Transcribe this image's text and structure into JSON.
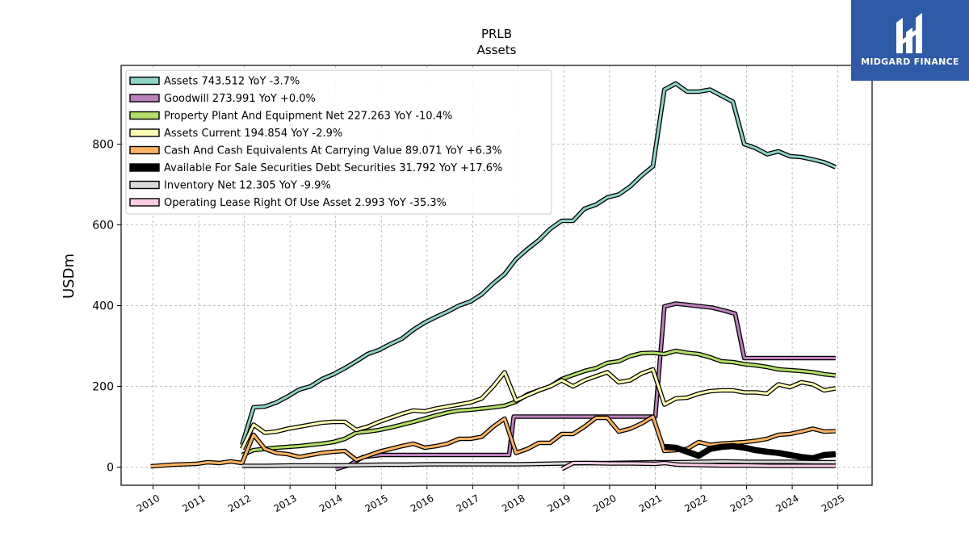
{
  "brand": {
    "name": "MIDGARD FINANCE",
    "color": "#2f5aa8",
    "icon": "midgard-logo-icon"
  },
  "chart_data": {
    "type": "line",
    "title": "PRLB",
    "subtitle": "Assets",
    "xlabel": "",
    "ylabel": "USDm",
    "xlim": [
      2009.3,
      2025.75
    ],
    "ylim": [
      -45,
      995
    ],
    "yticks": [
      0,
      200,
      400,
      600,
      800
    ],
    "xticks": [
      "2010",
      "2011",
      "2012",
      "2013",
      "2014",
      "2015",
      "2016",
      "2017",
      "2018",
      "2019",
      "2020",
      "2021",
      "2022",
      "2023",
      "2024",
      "2025"
    ],
    "grid": true,
    "legend_position": "top-left",
    "series": [
      {
        "name": "Assets",
        "legend": "Assets  743.512 YoY -3.7%",
        "color": "#8dd3c7",
        "width": 3,
        "x": [
          2011.95,
          2012.2,
          2012.45,
          2012.7,
          2012.95,
          2013.2,
          2013.45,
          2013.7,
          2013.95,
          2014.2,
          2014.45,
          2014.7,
          2014.95,
          2015.2,
          2015.45,
          2015.7,
          2015.95,
          2016.2,
          2016.45,
          2016.7,
          2016.95,
          2017.2,
          2017.45,
          2017.7,
          2017.95,
          2018.2,
          2018.45,
          2018.7,
          2018.95,
          2019.2,
          2019.45,
          2019.7,
          2019.95,
          2020.2,
          2020.45,
          2020.7,
          2020.95,
          2021.2,
          2021.45,
          2021.7,
          2021.95,
          2022.2,
          2022.45,
          2022.7,
          2022.95,
          2023.2,
          2023.45,
          2023.7,
          2023.95,
          2024.2,
          2024.45,
          2024.7,
          2024.95
        ],
        "y": [
          55,
          148,
          150,
          160,
          175,
          192,
          200,
          218,
          230,
          245,
          262,
          280,
          290,
          305,
          318,
          340,
          358,
          372,
          385,
          400,
          410,
          428,
          455,
          478,
          515,
          540,
          562,
          590,
          610,
          610,
          640,
          650,
          668,
          675,
          695,
          722,
          745,
          935,
          950,
          930,
          930,
          935,
          920,
          905,
          800,
          790,
          775,
          782,
          770,
          768,
          762,
          755,
          743
        ]
      },
      {
        "name": "Goodwill",
        "legend": "Goodwill  273.991 YoY +0.0%",
        "color": "#bc80bd",
        "width": 3,
        "x": [
          2014.0,
          2014.3,
          2014.6,
          2015.0,
          2015.5,
          2016.0,
          2016.5,
          2017.0,
          2017.5,
          2017.8,
          2017.9,
          2018.2,
          2018.6,
          2019.0,
          2019.5,
          2020.0,
          2020.5,
          2021.0,
          2021.2,
          2021.45,
          2021.7,
          2022.0,
          2022.25,
          2022.5,
          2022.75,
          2022.95,
          2023.2,
          2023.5,
          2024.0,
          2024.5,
          2024.95
        ],
        "y": [
          -5,
          5,
          25,
          30,
          30,
          30,
          30,
          30,
          30,
          30,
          125,
          125,
          125,
          125,
          125,
          125,
          125,
          125,
          398,
          405,
          402,
          398,
          395,
          388,
          380,
          270,
          270,
          270,
          270,
          270,
          270
        ]
      },
      {
        "name": "Property Plant And Equipment Net",
        "legend": "Property Plant And Equipment Net  227.263 YoY -10.4%",
        "color": "#b3de69",
        "width": 3,
        "x": [
          2011.95,
          2012.2,
          2012.45,
          2012.7,
          2012.95,
          2013.2,
          2013.45,
          2013.7,
          2013.95,
          2014.2,
          2014.45,
          2014.7,
          2014.95,
          2015.2,
          2015.45,
          2015.7,
          2015.95,
          2016.2,
          2016.45,
          2016.7,
          2016.95,
          2017.2,
          2017.45,
          2017.7,
          2017.95,
          2018.2,
          2018.45,
          2018.7,
          2018.95,
          2019.2,
          2019.45,
          2019.7,
          2019.95,
          2020.2,
          2020.45,
          2020.7,
          2020.95,
          2021.2,
          2021.45,
          2021.7,
          2021.95,
          2022.2,
          2022.45,
          2022.7,
          2022.95,
          2023.2,
          2023.45,
          2023.7,
          2023.95,
          2024.2,
          2024.45,
          2024.7,
          2024.95
        ],
        "y": [
          30,
          42,
          45,
          48,
          50,
          52,
          55,
          58,
          62,
          70,
          85,
          88,
          92,
          98,
          105,
          112,
          120,
          128,
          135,
          140,
          142,
          145,
          148,
          152,
          162,
          180,
          190,
          200,
          218,
          228,
          238,
          245,
          258,
          262,
          275,
          282,
          283,
          280,
          288,
          283,
          280,
          272,
          262,
          260,
          255,
          252,
          248,
          242,
          240,
          238,
          235,
          230,
          227
        ]
      },
      {
        "name": "Assets Current",
        "legend": "Assets Current  194.854 YoY -2.9%",
        "color": "#ffffb3",
        "width": 3,
        "x": [
          2011.95,
          2012.2,
          2012.45,
          2012.7,
          2012.95,
          2013.2,
          2013.45,
          2013.7,
          2013.95,
          2014.2,
          2014.45,
          2014.7,
          2014.95,
          2015.2,
          2015.45,
          2015.7,
          2015.95,
          2016.2,
          2016.45,
          2016.7,
          2016.95,
          2017.2,
          2017.45,
          2017.7,
          2017.95,
          2018.2,
          2018.45,
          2018.7,
          2018.95,
          2019.2,
          2019.45,
          2019.7,
          2019.95,
          2020.2,
          2020.45,
          2020.7,
          2020.95,
          2021.2,
          2021.45,
          2021.7,
          2021.95,
          2022.2,
          2022.45,
          2022.7,
          2022.95,
          2023.2,
          2023.45,
          2023.7,
          2023.95,
          2024.2,
          2024.45,
          2024.7,
          2024.95
        ],
        "y": [
          45,
          105,
          85,
          88,
          95,
          100,
          105,
          110,
          112,
          112,
          92,
          100,
          112,
          122,
          132,
          140,
          138,
          145,
          150,
          155,
          160,
          170,
          200,
          235,
          165,
          178,
          190,
          200,
          215,
          200,
          215,
          225,
          235,
          210,
          215,
          232,
          242,
          155,
          170,
          172,
          182,
          188,
          190,
          190,
          185,
          185,
          182,
          205,
          198,
          210,
          205,
          190,
          195
        ]
      },
      {
        "name": "Cash And Cash Equivalents At Carrying Value",
        "legend": "Cash And Cash Equivalents At Carrying Value  89.071 YoY +6.3%",
        "color": "#fdb462",
        "width": 3,
        "x": [
          2009.95,
          2010.2,
          2010.45,
          2010.7,
          2010.95,
          2011.2,
          2011.45,
          2011.7,
          2011.95,
          2012.2,
          2012.45,
          2012.7,
          2012.95,
          2013.2,
          2013.45,
          2013.7,
          2013.95,
          2014.2,
          2014.45,
          2014.7,
          2014.95,
          2015.2,
          2015.45,
          2015.7,
          2015.95,
          2016.2,
          2016.45,
          2016.7,
          2016.95,
          2017.2,
          2017.45,
          2017.7,
          2017.95,
          2018.2,
          2018.45,
          2018.7,
          2018.95,
          2019.2,
          2019.45,
          2019.7,
          2019.95,
          2020.2,
          2020.45,
          2020.7,
          2020.95,
          2021.2,
          2021.45,
          2021.7,
          2021.95,
          2022.2,
          2022.45,
          2022.7,
          2022.95,
          2023.2,
          2023.45,
          2023.7,
          2023.95,
          2024.2,
          2024.45,
          2024.7,
          2024.95
        ],
        "y": [
          2,
          4,
          6,
          7,
          8,
          12,
          10,
          14,
          10,
          80,
          45,
          35,
          32,
          25,
          30,
          35,
          38,
          40,
          18,
          28,
          38,
          45,
          52,
          58,
          48,
          52,
          58,
          70,
          70,
          75,
          100,
          120,
          35,
          45,
          60,
          60,
          82,
          82,
          100,
          122,
          122,
          88,
          95,
          108,
          125,
          40,
          42,
          45,
          62,
          55,
          58,
          60,
          62,
          65,
          70,
          80,
          82,
          88,
          95,
          88,
          89
        ]
      },
      {
        "name": "Available For Sale Securities Debt Securities",
        "legend": "Available For Sale Securities Debt Securities  31.792 YoY +17.6%",
        "color": "#000000",
        "width": 5,
        "x": [
          2021.2,
          2021.45,
          2021.7,
          2021.95,
          2022.2,
          2022.45,
          2022.7,
          2022.95,
          2023.2,
          2023.45,
          2023.7,
          2023.95,
          2024.2,
          2024.45,
          2024.7,
          2024.95
        ],
        "y": [
          50,
          48,
          38,
          28,
          45,
          50,
          52,
          48,
          42,
          38,
          35,
          30,
          25,
          22,
          30,
          32
        ]
      },
      {
        "name": "Inventory Net",
        "legend": "Inventory Net  12.305 YoY -9.9%",
        "color": "#d9d9d9",
        "width": 3,
        "x": [
          2011.95,
          2012.5,
          2013.0,
          2013.5,
          2014.0,
          2014.5,
          2015.0,
          2015.5,
          2016.0,
          2016.5,
          2017.0,
          2017.5,
          2018.0,
          2018.5,
          2019.0,
          2019.5,
          2020.0,
          2020.5,
          2021.0,
          2021.5,
          2022.0,
          2022.5,
          2023.0,
          2023.5,
          2024.0,
          2024.5,
          2024.95
        ],
        "y": [
          3,
          3,
          4,
          4,
          4,
          5,
          6,
          6,
          7,
          7,
          7,
          7,
          7,
          8,
          9,
          10,
          10,
          11,
          12,
          12,
          13,
          14,
          13,
          13,
          13,
          12,
          12
        ]
      },
      {
        "name": "Operating Lease Right Of Use Asset",
        "legend": "Operating Lease Right Of Use Asset  2.993 YoY -35.3%",
        "color": "#fccde5",
        "width": 3,
        "x": [
          2018.95,
          2019.2,
          2019.5,
          2020.0,
          2020.5,
          2021.0,
          2021.2,
          2021.5,
          2022.0,
          2022.5,
          2023.0,
          2023.5,
          2024.0,
          2024.5,
          2024.95
        ],
        "y": [
          -5,
          10,
          10,
          9,
          9,
          8,
          10,
          6,
          5,
          4,
          4,
          3,
          3,
          3,
          3
        ]
      }
    ]
  }
}
